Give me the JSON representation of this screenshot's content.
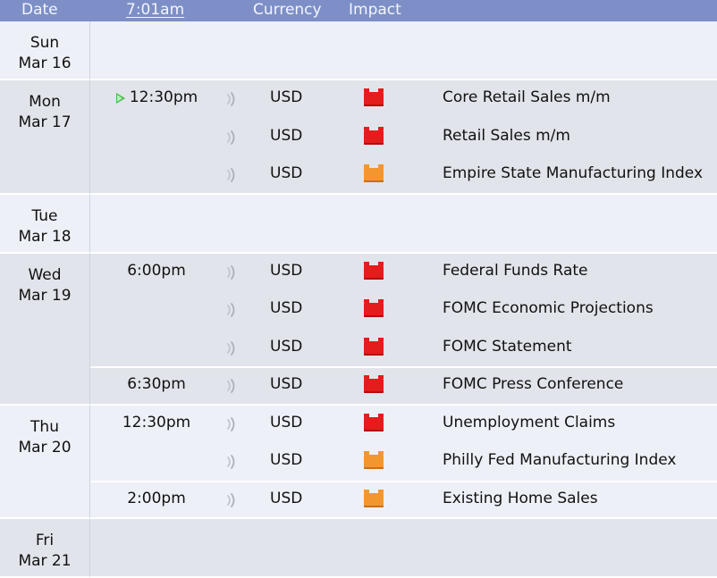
{
  "header": {
    "date": "Date",
    "time": "7:01am",
    "currency": "Currency",
    "impact": "Impact"
  },
  "colors": {
    "header_bg": "#7d8fc6",
    "high_impact": "#e61b1b",
    "medium_impact": "#f4962f",
    "row_odd": "#edf0f7",
    "row_even": "#e1e4ea"
  },
  "days": [
    {
      "dow": "Sun",
      "date": "Mar 16",
      "events": []
    },
    {
      "dow": "Mon",
      "date": "Mar 17",
      "events": [
        {
          "time": "12:30pm",
          "currency": "USD",
          "impact": "high",
          "title": "Core Retail Sales m/m",
          "next": true
        },
        {
          "time": "",
          "currency": "USD",
          "impact": "high",
          "title": "Retail Sales m/m"
        },
        {
          "time": "",
          "currency": "USD",
          "impact": "medium",
          "title": "Empire State Manufacturing Index"
        }
      ]
    },
    {
      "dow": "Tue",
      "date": "Mar 18",
      "events": []
    },
    {
      "dow": "Wed",
      "date": "Mar 19",
      "events": [
        {
          "time": "6:00pm",
          "currency": "USD",
          "impact": "high",
          "title": "Federal Funds Rate"
        },
        {
          "time": "",
          "currency": "USD",
          "impact": "high",
          "title": "FOMC Economic Projections"
        },
        {
          "time": "",
          "currency": "USD",
          "impact": "high",
          "title": "FOMC Statement"
        },
        {
          "time": "6:30pm",
          "currency": "USD",
          "impact": "high",
          "title": "FOMC Press Conference"
        }
      ]
    },
    {
      "dow": "Thu",
      "date": "Mar 20",
      "events": [
        {
          "time": "12:30pm",
          "currency": "USD",
          "impact": "high",
          "title": "Unemployment Claims"
        },
        {
          "time": "",
          "currency": "USD",
          "impact": "medium",
          "title": "Philly Fed Manufacturing Index"
        },
        {
          "time": "2:00pm",
          "currency": "USD",
          "impact": "medium",
          "title": "Existing Home Sales"
        }
      ]
    },
    {
      "dow": "Fri",
      "date": "Mar 21",
      "events": []
    }
  ]
}
